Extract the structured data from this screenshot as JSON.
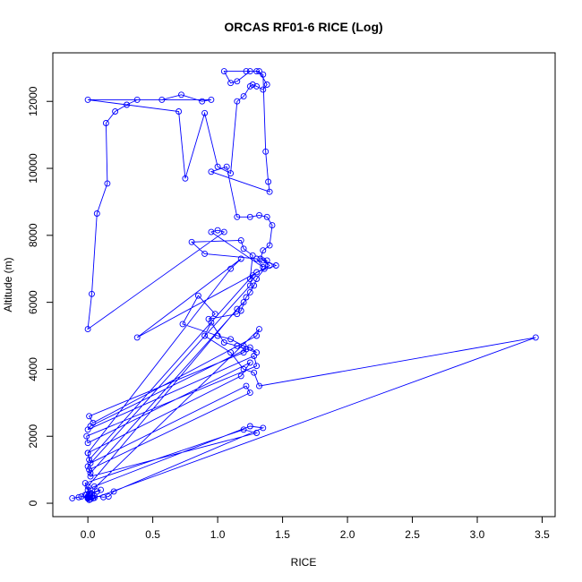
{
  "chart_data": {
    "type": "line",
    "title": "ORCAS RF01-6 RICE (Log)",
    "xlabel": "RICE",
    "ylabel": "Altitude (m)",
    "xlim": [
      -0.27,
      3.6
    ],
    "ylim": [
      -400,
      13450
    ],
    "x_ticks": [
      0.0,
      0.5,
      1.0,
      1.5,
      2.0,
      2.5,
      3.0,
      3.5
    ],
    "x_tick_labels": [
      "0.0",
      "0.5",
      "1.0",
      "1.5",
      "2.0",
      "2.5",
      "3.0",
      "3.5"
    ],
    "y_ticks": [
      0,
      2000,
      4000,
      6000,
      8000,
      10000,
      12000
    ],
    "y_tick_labels": [
      "0",
      "2000",
      "4000",
      "6000",
      "8000",
      "10000",
      "12000"
    ],
    "grid": false,
    "series": [
      {
        "color": "#0000ff",
        "marker": "open-circle",
        "x": [
          -0.12,
          -0.07,
          -0.05,
          0.0,
          0.05,
          0.02,
          -0.01,
          0.12,
          0.16,
          0.2,
          1.35,
          1.25,
          0.05,
          0.0,
          -0.02,
          1.2,
          1.3,
          0.02,
          0.01,
          1.25,
          1.22,
          0.02,
          0.0,
          1.18,
          1.25,
          0.0,
          -0.01,
          1.3,
          1.28,
          0.0,
          0.02,
          1.22,
          1.2,
          0.01,
          0.04,
          1.3,
          1.32,
          0.01,
          0.0,
          1.15,
          1.2,
          0.02,
          0.0,
          1.25,
          1.27,
          0.01,
          0.0,
          1.1,
          1.18,
          0.38,
          1.4,
          1.35,
          1.45,
          1.3,
          1.25,
          1.27,
          1.2,
          1.18,
          0.8,
          0.9,
          1.3,
          1.35,
          0.95,
          1.0,
          1.05,
          0.0,
          0.03,
          0.07,
          0.15,
          0.14,
          0.21,
          0.3,
          0.38,
          0.57,
          0.72,
          0.88,
          0.95,
          0.0,
          0.7,
          0.75,
          0.9,
          1.0,
          1.1,
          1.15,
          1.2,
          1.25,
          1.27,
          1.3,
          1.35,
          1.38,
          1.32,
          1.22,
          1.05,
          1.1,
          1.15,
          1.25,
          1.3,
          1.35,
          1.37,
          1.39,
          1.4,
          0.95,
          1.07,
          1.15,
          1.25,
          1.32,
          1.38,
          1.42,
          1.4,
          1.35,
          1.33,
          1.38,
          1.36,
          1.3,
          1.28,
          1.25,
          1.22,
          1.18,
          1.15,
          0.93,
          0.98,
          0.85,
          0.73,
          1.0,
          1.1,
          1.2,
          1.25,
          1.3,
          1.15,
          1.05,
          0.95,
          0.9,
          1.1,
          1.2,
          1.28,
          1.32,
          3.45,
          0.01,
          0.0,
          0.04,
          -0.02,
          0.02,
          0.0,
          0.03,
          0.05,
          0.01,
          0.0,
          0.02,
          0.1,
          0.07,
          0.03,
          0.0
        ],
        "y": [
          150,
          180,
          200,
          160,
          220,
          300,
          250,
          180,
          200,
          350,
          2250,
          2300,
          500,
          400,
          600,
          2200,
          2100,
          800,
          1000,
          3300,
          3500,
          1200,
          1500,
          3800,
          4200,
          1800,
          2000,
          4100,
          4400,
          2200,
          2300,
          4600,
          4500,
          2600,
          2400,
          5000,
          5200,
          300,
          500,
          5800,
          6000,
          900,
          1100,
          6500,
          6800,
          1300,
          1500,
          7000,
          7300,
          4950,
          7100,
          7250,
          7100,
          6900,
          6700,
          7400,
          7600,
          7850,
          7800,
          7450,
          7300,
          7050,
          8100,
          8150,
          8100,
          5200,
          6250,
          8650,
          9550,
          11350,
          11700,
          11900,
          12050,
          12050,
          12200,
          12000,
          12050,
          12050,
          11700,
          9700,
          11650,
          10050,
          9850,
          12000,
          12150,
          12450,
          12500,
          12450,
          12350,
          12500,
          12900,
          12900,
          12900,
          12550,
          12600,
          12900,
          12900,
          12800,
          10500,
          9600,
          9300,
          9900,
          10050,
          8550,
          8550,
          8600,
          8550,
          8300,
          7700,
          7550,
          7300,
          7250,
          7000,
          6700,
          6500,
          6300,
          6150,
          5750,
          5650,
          5500,
          5650,
          6200,
          5350,
          5000,
          4900,
          4700,
          4650,
          4500,
          4700,
          4800,
          5400,
          5000,
          4500,
          4000,
          3900,
          3500,
          4950,
          100,
          200,
          150,
          250,
          120,
          140,
          180,
          160,
          170,
          190,
          300,
          400,
          350,
          280,
          160
        ]
      }
    ]
  }
}
